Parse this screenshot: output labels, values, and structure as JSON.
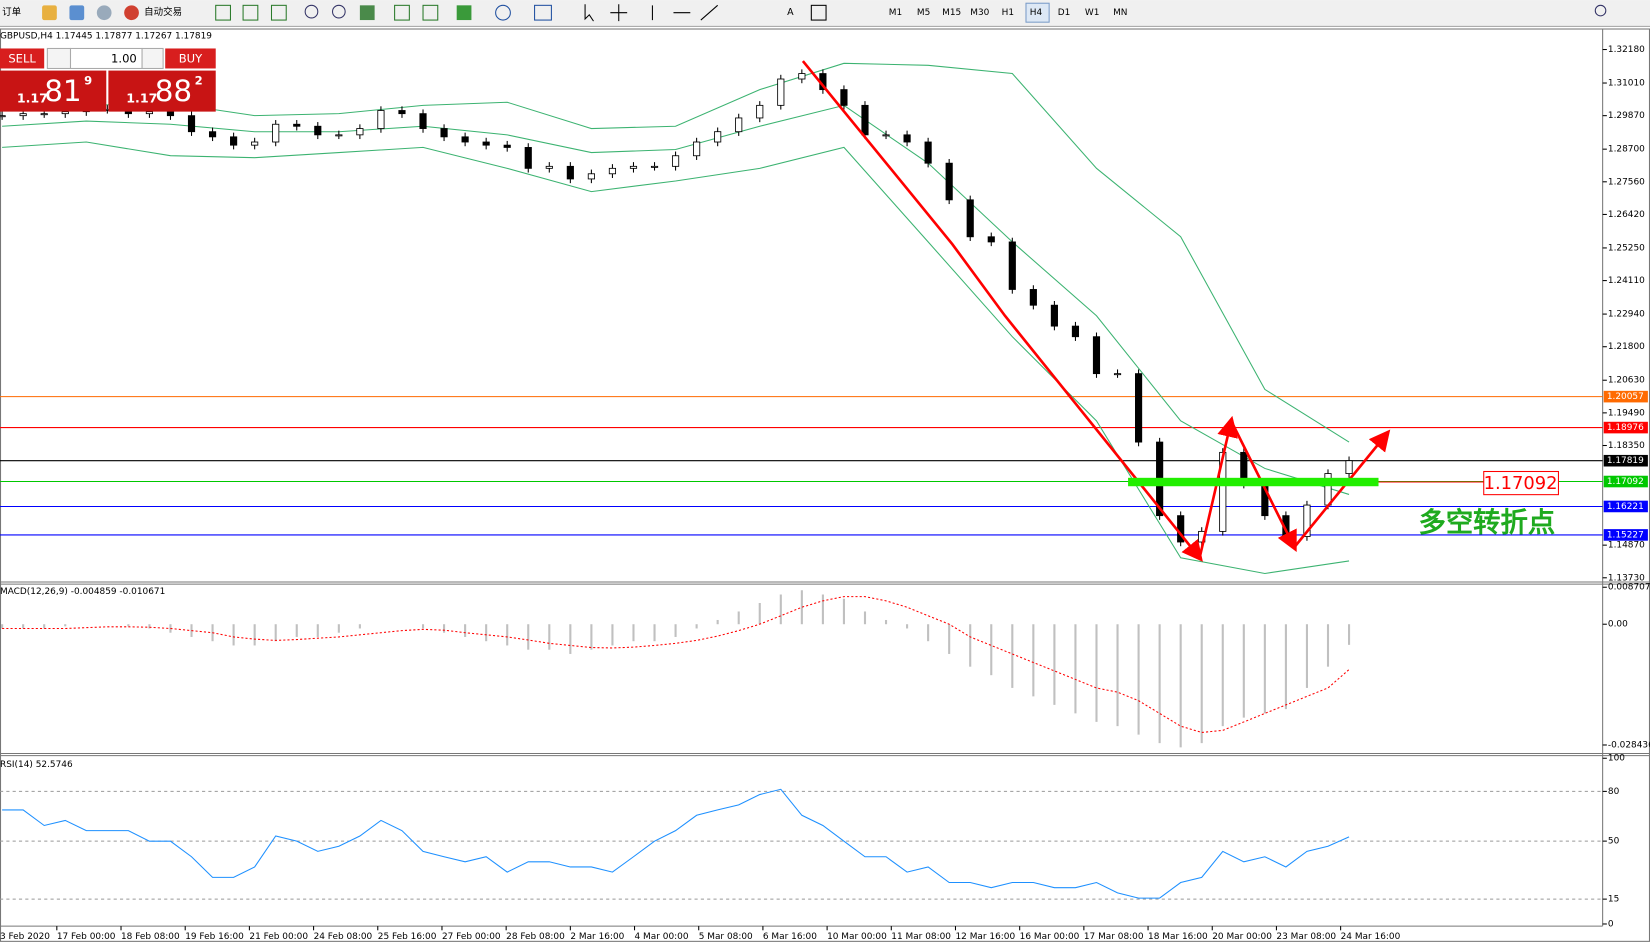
{
  "toolbar": {
    "new_order": "订单",
    "auto_trading": "自动交易",
    "timeframes": [
      "M1",
      "M5",
      "M15",
      "M30",
      "H1",
      "H4",
      "D1",
      "W1",
      "MN"
    ]
  },
  "trade_panel": {
    "sell": "SELL",
    "lots": "1.00",
    "buy": "BUY",
    "sell_price": {
      "prefix": "1.17",
      "big": "81",
      "small": "9"
    },
    "buy_price": {
      "prefix": "1.17",
      "big": "88",
      "small": "2"
    }
  },
  "chart_data": [
    {
      "type": "candlestick",
      "title": "GBPUSD,H4  1.17445 1.17877 1.17267 1.17819",
      "close": [
        1.2987,
        1.2994,
        1.2994,
        1.3001,
        1.3009,
        1.3009,
        1.2994,
        1.3001,
        1.2987,
        1.2931,
        1.2913,
        1.2884,
        1.2895,
        1.2957,
        1.295,
        1.292,
        1.292,
        1.2942,
        1.3005,
        1.2994,
        1.2942,
        1.2913,
        1.2895,
        1.2884,
        1.2876,
        1.2803,
        1.281,
        1.2766,
        1.2784,
        1.2803,
        1.281,
        1.281,
        1.2847,
        1.2895,
        1.2931,
        1.2979,
        1.3023,
        1.3115,
        1.3134,
        1.3078,
        1.3023,
        1.292,
        1.292,
        1.2895,
        1.2821,
        1.2693,
        1.2564,
        1.2546,
        1.238,
        1.2325,
        1.2252,
        1.2215,
        1.2086,
        1.2086,
        1.1847,
        1.159,
        1.1498,
        1.1535,
        1.1811,
        1.17,
        1.159,
        1.1517,
        1.1627,
        1.1737,
        1.17819
      ],
      "up_color": "#ffffff",
      "down_color": "#000000",
      "bands": {
        "color": "#3cb371",
        "x": [
          0,
          4,
          8,
          12,
          16,
          20,
          24,
          28,
          32,
          36,
          40,
          44,
          48,
          52,
          56,
          60,
          64
        ],
        "upper": [
          1.3012,
          1.3023,
          1.3031,
          1.2987,
          1.2994,
          1.3023,
          1.3034,
          1.2942,
          1.295,
          1.3078,
          1.317,
          1.3163,
          1.3134,
          1.2803,
          1.2564,
          1.2031,
          1.1847
        ],
        "middle": [
          1.295,
          1.2968,
          1.2957,
          1.2931,
          1.2931,
          1.295,
          1.292,
          1.2858,
          1.2869,
          1.295,
          1.3023,
          1.2821,
          1.2546,
          1.2288,
          1.1921,
          1.1755,
          1.1664
        ],
        "lower": [
          1.2876,
          1.2895,
          1.2847,
          1.284,
          1.2858,
          1.2876,
          1.2803,
          1.2722,
          1.2759,
          1.2803,
          1.2876,
          1.2546,
          1.2215,
          1.1921,
          1.1443,
          1.1388,
          1.1432
        ]
      },
      "levels": [
        {
          "value": 1.20057,
          "color": "#ff6a00"
        },
        {
          "value": 1.18976,
          "color": "#ff0000"
        },
        {
          "value": 1.17819,
          "color": "#000000"
        },
        {
          "value": 1.17092,
          "color": "#00c800"
        },
        {
          "value": 1.16221,
          "color": "#0000ff"
        },
        {
          "value": 1.15227,
          "color": "#0000ff"
        }
      ],
      "ylim": [
        1.1362,
        1.32878
      ],
      "yticks": [
        {
          "value": 1.3218,
          "label": "1.32180"
        },
        {
          "value": 1.3101,
          "label": "1.31010"
        },
        {
          "value": 1.2987,
          "label": "1.29870"
        },
        {
          "value": 1.287,
          "label": "1.28700"
        },
        {
          "value": 1.2756,
          "label": "1.27560"
        },
        {
          "value": 1.2642,
          "label": "1.26420"
        },
        {
          "value": 1.2525,
          "label": "1.25250"
        },
        {
          "value": 1.2411,
          "label": "1.24110"
        },
        {
          "value": 1.2294,
          "label": "1.22940"
        },
        {
          "value": 1.218,
          "label": "1.21800"
        },
        {
          "value": 1.2063,
          "label": "1.20630"
        },
        {
          "value": 1.1949,
          "label": "1.19490"
        },
        {
          "value": 1.1835,
          "label": "1.18350"
        },
        {
          "value": 1.1487,
          "label": "1.14870"
        },
        {
          "value": 1.1373,
          "label": "1.13730"
        }
      ],
      "annotation": "多空转折点"
    },
    {
      "type": "macd",
      "title": "MACD(12,26,9) -0.004859 -0.010671",
      "values": [
        -0.001,
        -0.001,
        -0.001,
        -0.0005,
        0,
        0,
        -0.0005,
        -0.001,
        -0.002,
        -0.003,
        -0.004,
        -0.005,
        -0.005,
        -0.004,
        -0.003,
        -0.003,
        -0.002,
        -0.001,
        0,
        0,
        -0.001,
        -0.002,
        -0.003,
        -0.004,
        -0.005,
        -0.006,
        -0.006,
        -0.007,
        -0.006,
        -0.005,
        -0.004,
        -0.004,
        -0.003,
        -0.001,
        0.001,
        0.003,
        0.005,
        0.007,
        0.008,
        0.007,
        0.006,
        0.003,
        0.001,
        -0.001,
        -0.004,
        -0.007,
        -0.01,
        -0.012,
        -0.015,
        -0.017,
        -0.019,
        -0.021,
        -0.023,
        -0.024,
        -0.026,
        -0.028,
        -0.029,
        -0.028,
        -0.024,
        -0.022,
        -0.021,
        -0.02,
        -0.015,
        -0.01,
        -0.004859
      ],
      "signal": [
        -0.001,
        -0.001,
        -0.001,
        -0.001,
        -0.0008,
        -0.0006,
        -0.0006,
        -0.0007,
        -0.001,
        -0.0015,
        -0.002,
        -0.003,
        -0.0035,
        -0.0038,
        -0.0036,
        -0.0033,
        -0.003,
        -0.0025,
        -0.002,
        -0.0015,
        -0.0012,
        -0.0014,
        -0.002,
        -0.0025,
        -0.003,
        -0.0037,
        -0.0045,
        -0.005,
        -0.0055,
        -0.0056,
        -0.0054,
        -0.005,
        -0.0045,
        -0.0038,
        -0.0028,
        -0.0015,
        0,
        0.002,
        0.004,
        0.0055,
        0.0065,
        0.0065,
        0.0055,
        0.004,
        0.002,
        0,
        -0.003,
        -0.005,
        -0.007,
        -0.009,
        -0.011,
        -0.013,
        -0.015,
        -0.016,
        -0.018,
        -0.021,
        -0.024,
        -0.0255,
        -0.025,
        -0.023,
        -0.021,
        -0.019,
        -0.017,
        -0.015,
        -0.010671
      ],
      "color": "#c0c0c0",
      "signal_color": "#ff0000",
      "ylim": [
        -0.0297,
        0.0092
      ],
      "yticks": [
        0.008707,
        {
          "value": 0,
          "label": "0.00"
        },
        -0.028436
      ]
    },
    {
      "type": "line",
      "title": "RSI(14) 52.5746",
      "values": [
        68.8,
        68.8,
        59.4,
        62.5,
        56.3,
        56.3,
        56.3,
        50,
        50,
        40.6,
        28.1,
        28.1,
        34.4,
        53.1,
        50,
        43.8,
        46.9,
        53.1,
        62.5,
        56.3,
        43.8,
        40.6,
        37.5,
        40.6,
        31.3,
        37.5,
        37.5,
        34.4,
        34.4,
        31.3,
        40.6,
        50,
        56.3,
        65.6,
        68.8,
        71.9,
        78.1,
        81.3,
        65.6,
        59.4,
        50,
        40.6,
        40.6,
        31.3,
        34.4,
        25,
        25,
        21.9,
        25,
        25,
        21.9,
        21.9,
        25,
        18.8,
        15.6,
        15.6,
        25,
        28.1,
        43.8,
        37.5,
        40.6,
        34.4,
        43.8,
        46.9,
        52.5746
      ],
      "color": "#1e90ff",
      "ylim": [
        0,
        100
      ],
      "yticks": [
        0,
        15,
        50,
        80,
        100
      ],
      "levels": [
        15,
        50,
        80
      ],
      "time_labels": [
        "3 Feb 2020",
        "17 Feb 00:00",
        "18 Feb 08:00",
        "19 Feb 16:00",
        "21 Feb 00:00",
        "24 Feb 08:00",
        "25 Feb 16:00",
        "27 Feb 00:00",
        "28 Feb 08:00",
        "2 Mar 16:00",
        "4 Mar 00:00",
        "5 Mar 08:00",
        "6 Mar 16:00",
        "10 Mar 00:00",
        "11 Mar 08:00",
        "12 Mar 16:00",
        "16 Mar 00:00",
        "17 Mar 08:00",
        "18 Mar 16:00",
        "20 Mar 00:00",
        "23 Mar 08:00",
        "24 Mar 16:00"
      ]
    }
  ]
}
